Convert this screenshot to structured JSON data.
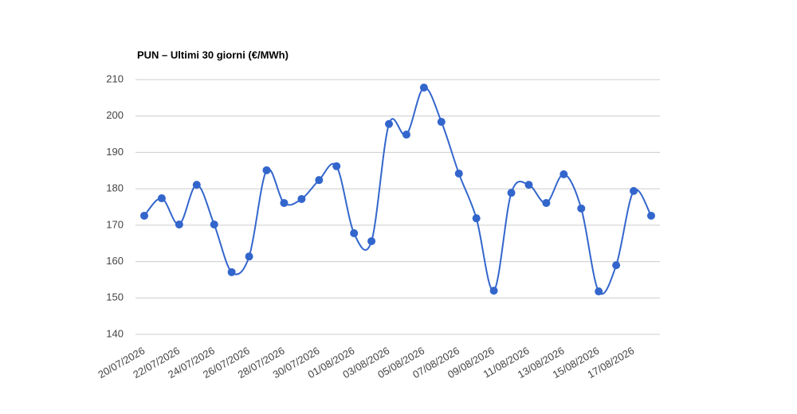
{
  "chart_data": {
    "type": "line",
    "title": "PUN – Ultimi 30 giorni (€/MWh)",
    "categories": [
      "20/07/2026",
      null,
      "22/07/2026",
      null,
      "24/07/2026",
      null,
      "26/07/2026",
      null,
      "28/07/2026",
      null,
      "30/07/2026",
      null,
      "01/08/2026",
      null,
      "03/08/2026",
      null,
      "05/08/2026",
      null,
      "07/08/2026",
      null,
      "09/08/2026",
      null,
      "11/08/2026",
      null,
      "13/08/2026",
      null,
      "15/08/2026",
      null,
      "17/08/2026",
      null
    ],
    "series": [
      {
        "color": "#3366cc",
        "values": [
          172.6,
          177.4,
          170.2,
          181.1,
          170.2,
          157.1,
          161.4,
          185.1,
          176.1,
          177.2,
          182.4,
          186.2,
          167.8,
          165.6,
          197.8,
          194.9,
          207.8,
          198.4,
          184.2,
          171.9,
          152.0,
          178.9,
          181.1,
          176.1,
          184.0,
          174.6,
          151.8,
          159.0,
          179.4,
          172.6
        ]
      }
    ],
    "ylim": [
      140,
      210
    ],
    "yticks": [
      140,
      150,
      160,
      170,
      180,
      190,
      200,
      210
    ],
    "grid": true,
    "smooth": true
  }
}
